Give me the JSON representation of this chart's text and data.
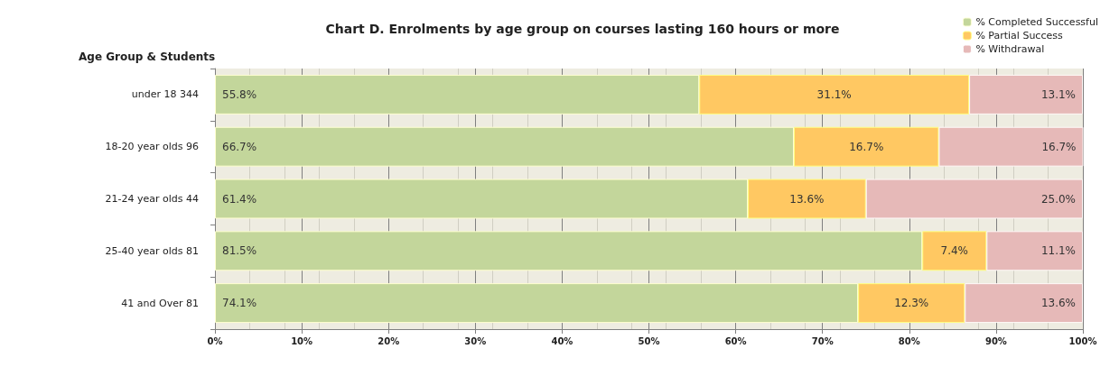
{
  "chart_data": {
    "type": "bar",
    "orientation": "horizontal",
    "stacked": true,
    "title": "Chart D. Enrolments by age group on courses lasting 160 hours or more",
    "ylabel": "Age Group & Students",
    "categories": [
      "under 18 344",
      "18-20 year olds 96",
      "21-24 year olds 44",
      "25-40 year olds 81",
      "41 and Over 81"
    ],
    "series": [
      {
        "name": "% Completed Successful",
        "color": "#c3d69b",
        "values": [
          55.8,
          66.7,
          61.4,
          81.5,
          74.1
        ],
        "value_labels": [
          "55.8%",
          "66.7%",
          "61.4%",
          "81.5%",
          "74.1%"
        ]
      },
      {
        "name": "% Partial Success",
        "color": "#ffc862",
        "values": [
          31.1,
          16.7,
          13.6,
          7.4,
          12.3
        ],
        "value_labels": [
          "31.1%",
          "16.7%",
          "13.6%",
          "7.4%",
          "12.3%"
        ]
      },
      {
        "name": "% Withdrawal",
        "color": "#e6b9b8",
        "values": [
          13.1,
          16.7,
          25.0,
          11.1,
          13.6
        ],
        "value_labels": [
          "13.1%",
          "16.7%",
          "25.0%",
          "11.1%",
          "13.6%"
        ]
      }
    ],
    "xlim": [
      0,
      100
    ],
    "xticks": [
      {
        "value": 0,
        "label": "0%"
      },
      {
        "value": 10,
        "label": "10%"
      },
      {
        "value": 20,
        "label": "20%"
      },
      {
        "value": 30,
        "label": "30%"
      },
      {
        "value": 40,
        "label": "40%"
      },
      {
        "value": 50,
        "label": "50%"
      },
      {
        "value": 60,
        "label": "60%"
      },
      {
        "value": 70,
        "label": "70%"
      },
      {
        "value": 80,
        "label": "80%"
      },
      {
        "value": 90,
        "label": "90%"
      },
      {
        "value": 100,
        "label": "100%"
      }
    ],
    "grid": "x",
    "legend": "top right"
  }
}
